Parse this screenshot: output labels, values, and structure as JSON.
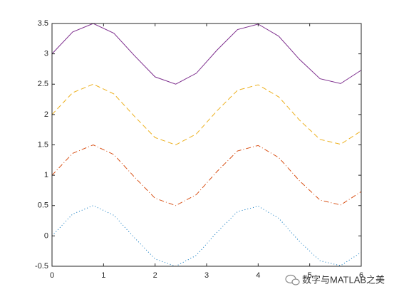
{
  "chart_data": {
    "type": "line",
    "x": [
      0,
      0.4,
      0.8,
      1.2,
      1.6,
      2.0,
      2.4,
      2.8,
      3.2,
      3.6,
      4.0,
      4.4,
      4.8,
      5.2,
      5.6,
      6.0
    ],
    "series": [
      {
        "color": "#0072bd",
        "linestyle": ":",
        "values": [
          0,
          0.36,
          0.5,
          0.34,
          -0.03,
          -0.38,
          -0.5,
          -0.32,
          0.06,
          0.4,
          0.49,
          0.29,
          -0.09,
          -0.41,
          -0.49,
          -0.27
        ]
      },
      {
        "color": "#d95319",
        "linestyle": "-.",
        "values": [
          1,
          1.36,
          1.5,
          1.34,
          0.97,
          0.62,
          0.5,
          0.68,
          1.06,
          1.4,
          1.49,
          1.29,
          0.91,
          0.59,
          0.51,
          0.73
        ]
      },
      {
        "color": "#edb120",
        "linestyle": "--",
        "values": [
          2,
          2.36,
          2.5,
          2.34,
          1.97,
          1.62,
          1.5,
          1.68,
          2.06,
          2.4,
          2.49,
          2.29,
          1.91,
          1.59,
          1.51,
          1.73
        ]
      },
      {
        "color": "#7e2f8e",
        "linestyle": "-",
        "values": [
          3,
          3.36,
          3.5,
          3.34,
          2.97,
          2.62,
          2.5,
          2.68,
          3.06,
          3.4,
          3.49,
          3.29,
          2.91,
          2.59,
          2.51,
          2.73
        ]
      }
    ],
    "xlim": [
      0,
      6
    ],
    "xticks": [
      0,
      1,
      2,
      3,
      4,
      5,
      6
    ],
    "ylim": [
      -0.5,
      3.5
    ],
    "yticks": [
      -0.5,
      0,
      0.5,
      1,
      1.5,
      2,
      2.5,
      3,
      3.5
    ],
    "grid": false,
    "watermark": "数字与MATLAB之美"
  }
}
